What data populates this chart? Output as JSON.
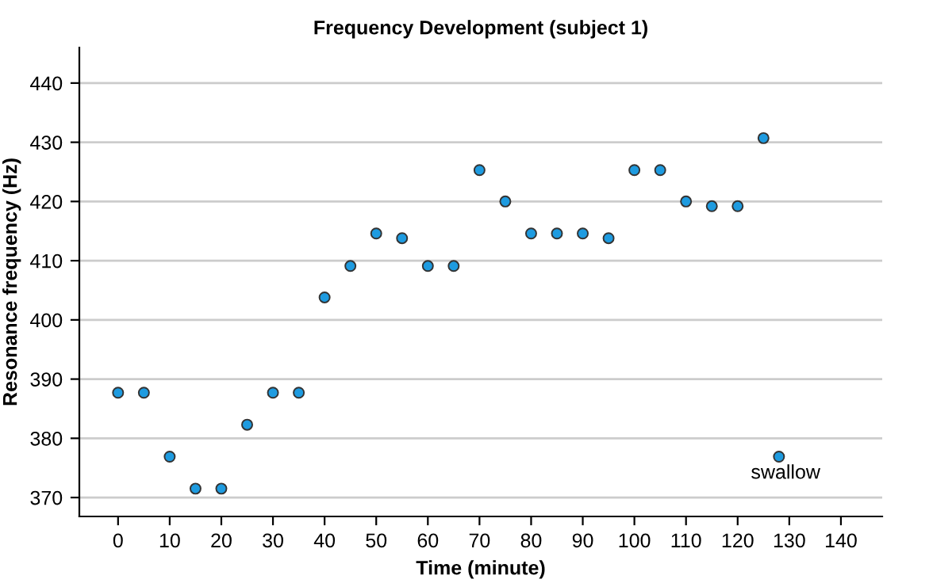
{
  "chart_data": {
    "type": "scatter",
    "title": "Frequency Development (subject 1)",
    "xlabel": "Time (minute)",
    "ylabel": "Resonance frequency (Hz)",
    "x": [
      0,
      5,
      10,
      15,
      20,
      25,
      30,
      35,
      40,
      45,
      50,
      55,
      60,
      65,
      70,
      75,
      80,
      85,
      90,
      95,
      100,
      105,
      110,
      115,
      120,
      125,
      128
    ],
    "series": [
      {
        "color": "#1e9be0",
        "values": [
          387.7,
          387.7,
          376.9,
          371.5,
          371.5,
          382.3,
          387.7,
          387.7,
          403.8,
          409.1,
          414.6,
          413.8,
          409.1,
          409.1,
          425.3,
          420,
          414.6,
          414.6,
          414.6,
          413.8,
          425.3,
          425.3,
          420,
          419.2,
          419.2,
          430.7,
          376.9
        ]
      }
    ],
    "annotations": [
      {
        "text": "swallow",
        "x": 128,
        "y": 376.9
      }
    ],
    "xlim": [
      -7.5,
      148
    ],
    "xticks": [
      0,
      10,
      20,
      30,
      40,
      50,
      60,
      70,
      80,
      90,
      100,
      110,
      120,
      130,
      140
    ],
    "ylim": [
      366.8,
      446
    ],
    "yticks": [
      370,
      380,
      390,
      400,
      410,
      420,
      430,
      440
    ],
    "grid": "y",
    "marker": "circle"
  }
}
